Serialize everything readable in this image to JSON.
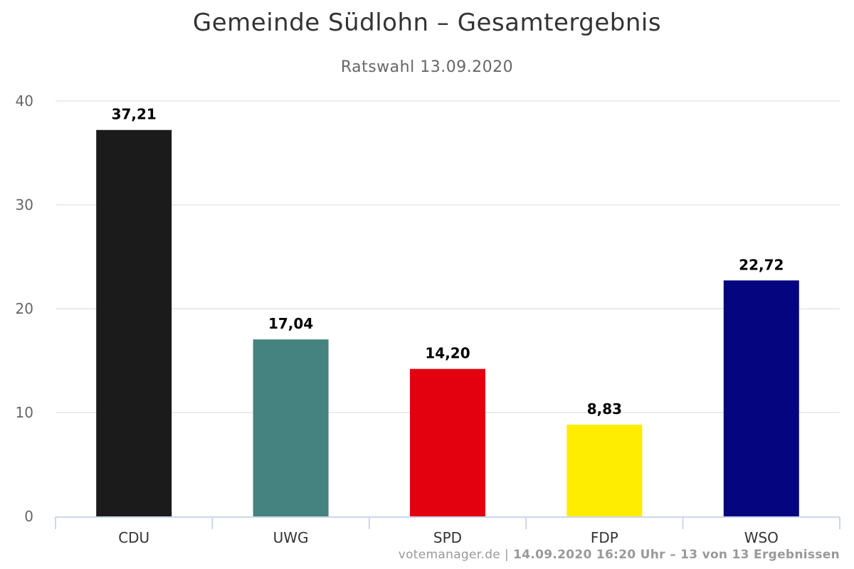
{
  "chart_data": {
    "type": "bar",
    "title": "Gemeinde Südlohn – Gesamtergebnis",
    "subtitle": "Ratswahl 13.09.2020",
    "xlabel": "",
    "ylabel": "",
    "categories": [
      "CDU",
      "UWG",
      "SPD",
      "FDP",
      "WSO"
    ],
    "values": [
      37.21,
      17.04,
      14.2,
      8.83,
      22.72
    ],
    "value_labels": [
      "37,21",
      "17,04",
      "14,20",
      "8,83",
      "22,72"
    ],
    "colors": [
      "#1b1b1b",
      "#448380",
      "#e3000f",
      "#ffed00",
      "#05057f"
    ],
    "ylim": [
      0,
      40
    ],
    "yticks": [
      0,
      10,
      20,
      30,
      40
    ],
    "grid": true,
    "legend": "none"
  },
  "credits": {
    "site": "votemanager.de",
    "separator": "|",
    "status": "14.09.2020 16:20 Uhr – 13 von 13 Ergebnissen"
  }
}
